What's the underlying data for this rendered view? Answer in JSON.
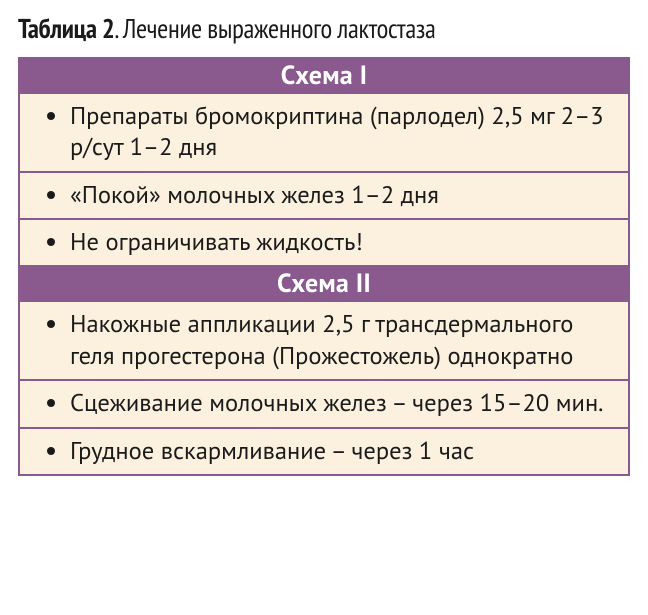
{
  "caption": {
    "label_prefix": "Таблица 2",
    "separator": ". ",
    "title": "Лечение выраженного лактостаза"
  },
  "table": {
    "border_color": "#8a5a8f",
    "header_bg": "#8a5a8f",
    "header_text_color": "#ffffff",
    "cell_bg": "#fbf1de",
    "text_color": "#1a1a1a",
    "sections": [
      {
        "header": "Схема I",
        "rows": [
          "Препараты бромокриптина (парлодел) 2,5 мг 2–3 р/сут 1–2 дня",
          "«Покой» молочных желез 1–2 дня",
          "Не ограничивать жидкость!"
        ]
      },
      {
        "header": "Схема II",
        "rows": [
          "Накожные аппликации 2,5 г трансдермального геля прогестерона (Прожестожель) однократно",
          "Сцеживание молочных желез – через 15–20 мин.",
          "Грудное вскармливание – через 1 час"
        ]
      }
    ]
  }
}
